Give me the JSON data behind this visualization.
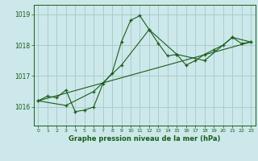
{
  "background_color": "#cce8ea",
  "grid_color": "#aacccc",
  "line_color": "#1a5c1a",
  "title": "Graphe pression niveau de la mer (hPa)",
  "xlim": [
    -0.5,
    23.5
  ],
  "ylim": [
    1015.4,
    1019.3
  ],
  "yticks": [
    1016,
    1017,
    1018,
    1019
  ],
  "xticks": [
    0,
    1,
    2,
    3,
    4,
    5,
    6,
    7,
    8,
    9,
    10,
    11,
    12,
    13,
    14,
    15,
    16,
    17,
    18,
    19,
    20,
    21,
    22,
    23
  ],
  "series": [
    {
      "x": [
        0,
        1,
        2,
        3,
        4,
        5,
        6,
        7,
        8,
        9,
        10,
        11,
        12,
        13,
        14,
        15,
        16,
        17,
        18,
        19,
        20,
        21,
        22,
        23
      ],
      "y": [
        1016.2,
        1016.35,
        1016.3,
        1016.55,
        1015.85,
        1015.9,
        1016.0,
        1016.75,
        1017.1,
        1018.1,
        1018.8,
        1018.95,
        1018.5,
        1018.05,
        1017.65,
        1017.7,
        1017.35,
        1017.5,
        1017.7,
        1017.85,
        1018.0,
        1018.25,
        1018.05,
        1018.1
      ],
      "marker": "+"
    },
    {
      "x": [
        0,
        3,
        6,
        9,
        12,
        15,
        18,
        21,
        23
      ],
      "y": [
        1016.2,
        1016.05,
        1016.5,
        1017.35,
        1018.5,
        1017.7,
        1017.5,
        1018.25,
        1018.1
      ],
      "marker": "+"
    },
    {
      "x": [
        0,
        23
      ],
      "y": [
        1016.2,
        1018.1
      ],
      "marker": null
    }
  ]
}
